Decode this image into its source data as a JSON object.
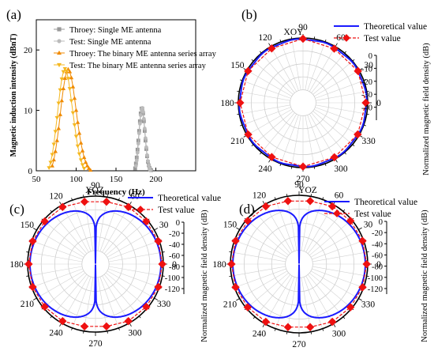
{
  "panels": [
    {
      "label": "(a)",
      "chart_data": {
        "type": "line",
        "xlabel": "Frequency (Hz)",
        "ylabel": "Magnetic induction intensity (dBnT)",
        "xlim": [
          50,
          250
        ],
        "ylim": [
          0,
          25
        ],
        "xticks": [
          "50",
          "100",
          "150",
          "200"
        ],
        "yticks": [
          "0",
          "10",
          "20"
        ],
        "legend_position": "top-right",
        "series": [
          {
            "name": "Throey: Single ME antenna",
            "color": "#999999",
            "marker": "square",
            "x": [
              174,
              175,
              176,
              177,
              178,
              179,
              180,
              181,
              182,
              183,
              184,
              185,
              186,
              187,
              188,
              189,
              190,
              191,
              192,
              193,
              194
            ],
            "y": [
              0.4,
              1.2,
              2.2,
              3.5,
              5.0,
              6.6,
              8.2,
              9.5,
              10.3,
              10.3,
              9.5,
              8.2,
              6.6,
              5.0,
              3.6,
              2.4,
              1.5,
              0.9,
              0.5,
              0.2,
              0.1
            ]
          },
          {
            "name": "Test: Single ME antenna",
            "color": "#bbbbbb",
            "marker": "circle",
            "x": [
              175,
              176,
              177,
              178,
              179,
              180,
              181,
              182,
              183,
              184,
              185,
              186,
              187,
              188,
              189,
              190,
              191,
              192,
              193
            ],
            "y": [
              0.8,
              1.7,
              3.0,
              4.5,
              6.2,
              7.8,
              9.2,
              10.1,
              10.4,
              9.8,
              8.6,
              7.0,
              5.4,
              3.9,
              2.6,
              1.6,
              0.9,
              0.4,
              0.1
            ]
          },
          {
            "name": "Throey: The binary ME antenna series array",
            "color": "#f08a00",
            "marker": "triangle-up",
            "x": [
              70,
              72,
              74,
              76,
              78,
              80,
              82,
              84,
              86,
              88,
              90,
              92,
              94,
              96,
              98,
              100,
              102,
              104,
              106,
              108,
              110,
              112,
              114,
              116,
              118
            ],
            "y": [
              0.8,
              1.8,
              3.2,
              5.0,
              7.0,
              9.3,
              11.6,
              13.6,
              15.3,
              16.4,
              16.8,
              16.4,
              15.4,
              13.9,
              12.0,
              10.0,
              8.0,
              6.2,
              4.6,
              3.3,
              2.2,
              1.4,
              0.8,
              0.4,
              0.1
            ]
          },
          {
            "name": "Test: The binary ME antenna series array",
            "color": "#f5b820",
            "marker": "triangle-down",
            "x": [
              66,
              68,
              70,
              72,
              74,
              76,
              78,
              80,
              82,
              84,
              86,
              88,
              90,
              92,
              94,
              96,
              98,
              100,
              102,
              104,
              106,
              108,
              110
            ],
            "y": [
              0.5,
              1.4,
              2.7,
              4.4,
              6.5,
              8.8,
              11.2,
              13.4,
              15.2,
              16.4,
              16.9,
              16.5,
              15.3,
              13.6,
              11.6,
              9.6,
              7.6,
              5.7,
              4.1,
              2.8,
              1.8,
              1.0,
              0.4
            ]
          }
        ]
      }
    },
    {
      "label": "(b)",
      "chart_data": {
        "type": "polar",
        "plane_label": "XOY",
        "angle_ticks": [
          "0",
          "30",
          "60",
          "90",
          "120",
          "150",
          "180",
          "210",
          "240",
          "270",
          "300",
          "330"
        ],
        "radial_ticks": [
          "0",
          "-10",
          "-20",
          "-30",
          "-40"
        ],
        "rlim": [
          -50,
          0
        ],
        "radial_axis_label": "Normalized magnetic field density (dB)",
        "legend_position": "top-right",
        "series": [
          {
            "name": "Theoretical value",
            "color": "#1a1aff",
            "style": "solid",
            "pattern": "circle",
            "value_db": -1.0
          },
          {
            "name": "Test value",
            "color": "#ee1111",
            "style": "dashed",
            "marker": "diamond",
            "angles_deg": [
              0,
              30,
              60,
              90,
              120,
              150,
              180,
              210,
              240,
              270,
              300,
              330
            ],
            "values_db": [
              -1.5,
              -1.0,
              -1.8,
              -0.6,
              -1.6,
              -1.0,
              -1.4,
              -1.1,
              -1.7,
              -0.8,
              -1.5,
              -1.2
            ]
          }
        ]
      }
    },
    {
      "label": "(c)",
      "chart_data": {
        "type": "polar",
        "plane_label": "XOZ",
        "angle_ticks": [
          "0",
          "30",
          "60",
          "90",
          "120",
          "150",
          "180",
          "210",
          "240",
          "270",
          "300",
          "330"
        ],
        "radial_ticks": [
          "0",
          "-20",
          "-40",
          "-60",
          "-80",
          "-100",
          "-120"
        ],
        "rlim": [
          -130,
          0
        ],
        "radial_axis_label": "Normalized magnetic field density (dB)",
        "legend_position": "top-right",
        "series": [
          {
            "name": "Theoretical value",
            "color": "#1a1aff",
            "style": "solid",
            "pattern": "dipole-null-at-90-270"
          },
          {
            "name": "Test value",
            "color": "#ee1111",
            "style": "dashed",
            "marker": "diamond",
            "angles_deg": [
              0,
              20,
              40,
              60,
              80,
              100,
              120,
              140,
              160,
              180,
              200,
              220,
              240,
              260,
              280,
              300,
              320,
              340
            ],
            "values_db": [
              -2,
              -2,
              -3,
              -4,
              -9,
              -9,
              -4,
              -3,
              -2,
              -2,
              -2,
              -3,
              -4,
              -9,
              -9,
              -4,
              -3,
              -2
            ]
          }
        ]
      }
    },
    {
      "label": "(d)",
      "chart_data": {
        "type": "polar",
        "plane_label": "YOZ",
        "angle_ticks": [
          "0",
          "30",
          "60",
          "90",
          "120",
          "150",
          "180",
          "210",
          "240",
          "270",
          "300",
          "330"
        ],
        "radial_ticks": [
          "0",
          "-20",
          "-40",
          "-60",
          "-80",
          "-100",
          "-120"
        ],
        "rlim": [
          -130,
          0
        ],
        "radial_axis_label": "Normalized magnetic field density (dB)",
        "legend_position": "top-right",
        "series": [
          {
            "name": "Theoretical value",
            "color": "#1a1aff",
            "style": "solid",
            "pattern": "dipole-null-at-90-270"
          },
          {
            "name": "Test value",
            "color": "#ee1111",
            "style": "dashed",
            "marker": "diamond",
            "angles_deg": [
              0,
              20,
              40,
              60,
              80,
              100,
              120,
              140,
              160,
              180,
              200,
              220,
              240,
              260,
              280,
              300,
              320,
              340
            ],
            "values_db": [
              -2,
              -2,
              -3,
              -4,
              -9,
              -9,
              -4,
              -3,
              -2,
              -2,
              -2,
              -3,
              -4,
              -9,
              -9,
              -4,
              -3,
              -2
            ]
          }
        ]
      }
    }
  ]
}
